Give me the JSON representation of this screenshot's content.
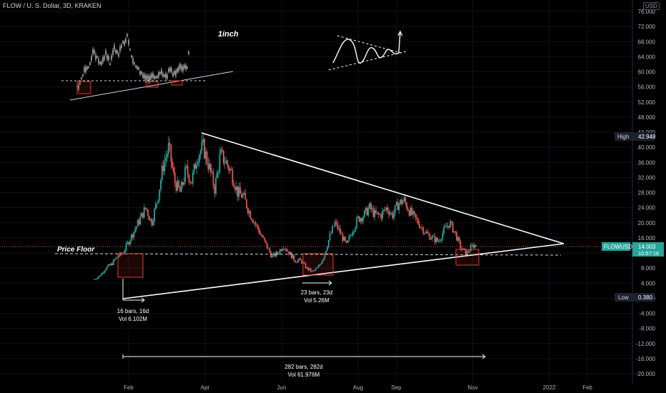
{
  "header": {
    "symbol_line": "FLOW / U. S. Dollar, 3D, KRAKEN",
    "currency_badge": "USD"
  },
  "colors": {
    "up": "#26a69a",
    "down": "#ef5350",
    "accent": "#ffffff",
    "price_tag": "#26a69a",
    "box": "#e53935"
  },
  "chart_data": {
    "type": "candlestick",
    "title": "FLOW / U. S. Dollar, 3D, KRAKEN",
    "x_ticks": [
      "Feb",
      "Apr",
      "Jun",
      "Aug",
      "Sep",
      "Nov",
      "2022",
      "Feb"
    ],
    "y_ticks": [
      "76.000",
      "72.000",
      "68.000",
      "64.000",
      "60.000",
      "56.000",
      "52.000",
      "48.000",
      "44.000",
      "40.000",
      "36.000",
      "32.000",
      "28.000",
      "24.000",
      "20.000",
      "16.000",
      "12.000",
      "8.000",
      "4.000",
      "0.000",
      "-4.000",
      "-8.000",
      "-12.000",
      "-16.000",
      "-20.000"
    ],
    "ylim": [
      -22,
      78
    ],
    "x_range_months": [
      0.5,
      13.5
    ],
    "series_approx_close": [
      [
        1.1,
        5
      ],
      [
        1.25,
        6
      ],
      [
        1.4,
        8
      ],
      [
        1.55,
        9
      ],
      [
        1.7,
        11
      ],
      [
        1.85,
        12
      ],
      [
        2.0,
        15
      ],
      [
        2.15,
        18
      ],
      [
        2.3,
        21
      ],
      [
        2.45,
        24
      ],
      [
        2.6,
        20
      ],
      [
        2.75,
        26
      ],
      [
        2.9,
        35
      ],
      [
        3.05,
        40
      ],
      [
        3.2,
        31
      ],
      [
        3.35,
        28
      ],
      [
        3.5,
        34
      ],
      [
        3.65,
        31
      ],
      [
        3.8,
        38
      ],
      [
        3.95,
        40
      ],
      [
        4.1,
        35
      ],
      [
        4.25,
        29
      ],
      [
        4.4,
        38
      ],
      [
        4.55,
        36
      ],
      [
        4.7,
        33
      ],
      [
        4.85,
        28
      ],
      [
        5.0,
        27
      ],
      [
        5.15,
        23
      ],
      [
        5.3,
        20
      ],
      [
        5.45,
        17
      ],
      [
        5.6,
        14
      ],
      [
        5.75,
        11
      ],
      [
        5.9,
        12
      ],
      [
        6.05,
        14
      ],
      [
        6.2,
        12
      ],
      [
        6.35,
        10
      ],
      [
        6.5,
        10
      ],
      [
        6.65,
        8
      ],
      [
        6.8,
        7
      ],
      [
        6.95,
        8
      ],
      [
        7.1,
        11
      ],
      [
        7.25,
        16
      ],
      [
        7.4,
        20
      ],
      [
        7.55,
        17
      ],
      [
        7.7,
        14
      ],
      [
        7.85,
        18
      ],
      [
        8.0,
        21
      ],
      [
        8.15,
        22
      ],
      [
        8.3,
        24
      ],
      [
        8.45,
        22
      ],
      [
        8.6,
        22
      ],
      [
        8.75,
        24
      ],
      [
        8.9,
        22
      ],
      [
        9.05,
        25
      ],
      [
        9.2,
        26
      ],
      [
        9.35,
        23
      ],
      [
        9.5,
        21
      ],
      [
        9.65,
        19
      ],
      [
        9.8,
        17
      ],
      [
        9.95,
        16
      ],
      [
        10.1,
        15
      ],
      [
        10.25,
        18
      ],
      [
        10.4,
        20
      ],
      [
        10.55,
        17
      ],
      [
        10.7,
        13
      ],
      [
        10.85,
        12
      ],
      [
        11.0,
        14
      ],
      [
        11.1,
        14.003
      ]
    ],
    "stats": {
      "high_label": "High",
      "high_value": "42.948",
      "low_label": "Low",
      "low_value": "0.380"
    },
    "last_price": {
      "symbol": "FLOWUSD",
      "value": "14.003",
      "countdown": "10:57:16"
    },
    "annotations": {
      "price_floor": "Price Floor",
      "inset_title": "1inch",
      "m1_bars": "16 bars, 16d",
      "m1_vol": "Vol 6.102M",
      "m2_bars": "23 bars, 23d",
      "m2_vol": "Vol 5.26M",
      "m3_bars": "282 bars, 282d",
      "m3_vol": "Vol 61.976M"
    }
  }
}
